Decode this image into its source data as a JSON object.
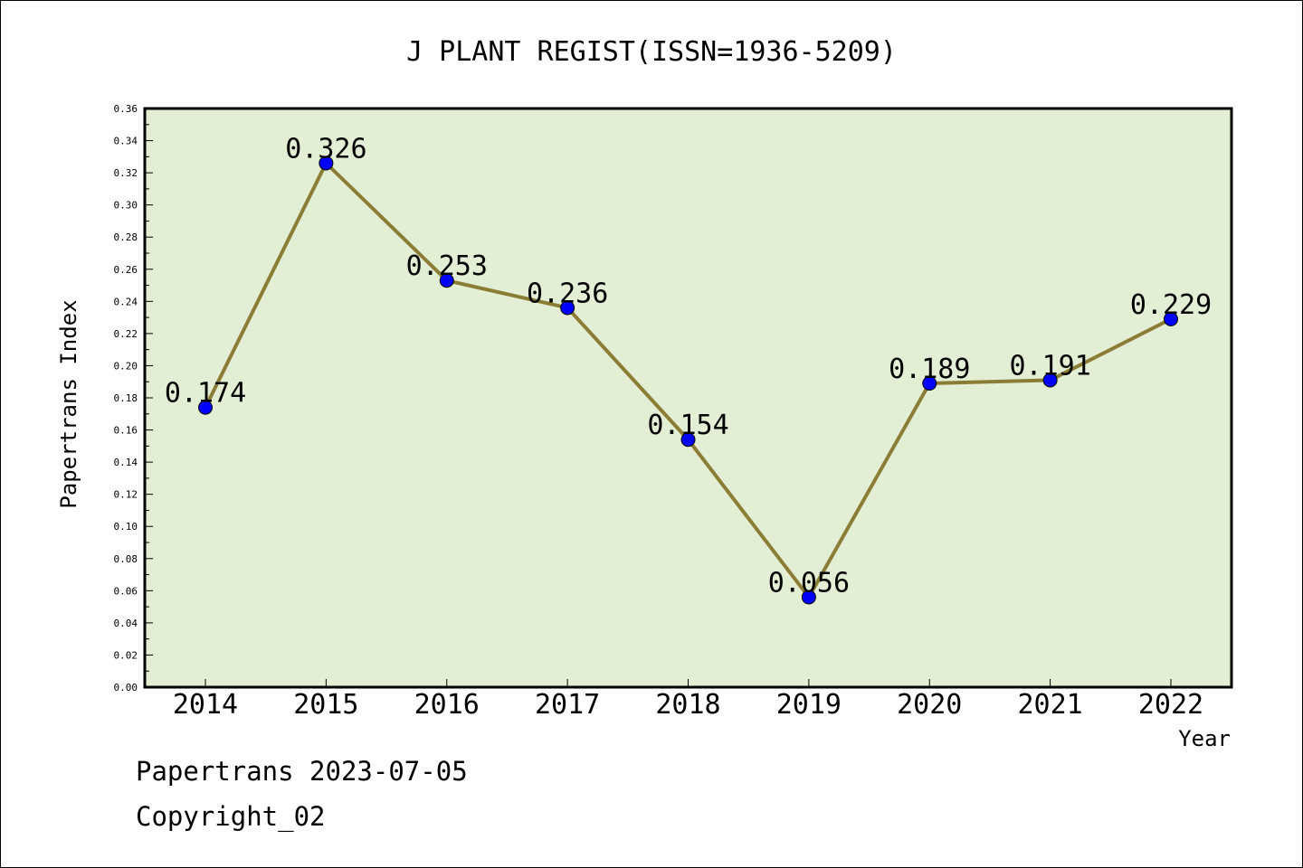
{
  "chart_data": {
    "type": "line",
    "title": "J PLANT REGIST(ISSN=1936-5209)",
    "xlabel": "Year",
    "ylabel": "Papertrans Index",
    "categories": [
      "2014",
      "2015",
      "2016",
      "2017",
      "2018",
      "2019",
      "2020",
      "2021",
      "2022"
    ],
    "series": [
      {
        "values": [
          0.174,
          0.326,
          0.253,
          0.236,
          0.154,
          0.056,
          0.189,
          0.191,
          0.229
        ],
        "labels": [
          "0.174",
          "0.326",
          "0.253",
          "0.236",
          "0.154",
          "0.056",
          "0.189",
          "0.191",
          "0.229"
        ]
      }
    ],
    "y_ticks": [
      "0.00",
      "0.02",
      "0.04",
      "0.06",
      "0.08",
      "0.10",
      "0.12",
      "0.14",
      "0.16",
      "0.18",
      "0.20",
      "0.22",
      "0.24",
      "0.26",
      "0.28",
      "0.30",
      "0.32",
      "0.34",
      "0.36"
    ],
    "ylim": [
      0,
      0.36
    ],
    "grid": false,
    "colors": {
      "plot_bg": "#e2efd4",
      "line": "#8b7d35",
      "marker": "#0000ff"
    }
  },
  "footer": {
    "line1": "Papertrans 2023-07-05",
    "line2": "Copyright_02"
  }
}
